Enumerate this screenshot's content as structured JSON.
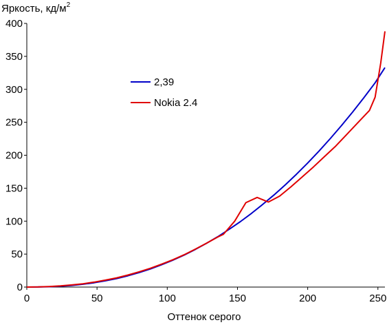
{
  "chart_data": {
    "type": "line",
    "ylabel_main": "Яркость, кд/м",
    "ylabel_sup": "2",
    "xlabel": "Оттенок серого",
    "xlim": [
      0,
      255
    ],
    "ylim": [
      0,
      400
    ],
    "xticks": [
      0,
      50,
      100,
      150,
      200,
      250
    ],
    "yticks": [
      0,
      50,
      100,
      150,
      200,
      250,
      300,
      350,
      400
    ],
    "grid": false,
    "legend_position": "upper-left-center",
    "series": [
      {
        "name": "2,39",
        "color": "#0000c8",
        "x": [
          0,
          8,
          16,
          24,
          32,
          40,
          48,
          56,
          64,
          72,
          80,
          88,
          96,
          104,
          112,
          120,
          128,
          136,
          144,
          152,
          160,
          168,
          176,
          184,
          192,
          200,
          208,
          216,
          224,
          232,
          240,
          248,
          255
        ],
        "y": [
          0,
          0.09,
          0.48,
          1.27,
          2.52,
          4.28,
          6.58,
          9.46,
          13.0,
          17.1,
          22.0,
          27.5,
          33.8,
          40.8,
          48.5,
          57.1,
          66.4,
          76.5,
          87.5,
          99.2,
          111.9,
          125.4,
          139.7,
          155.0,
          171.2,
          188.2,
          206.2,
          225.1,
          244.9,
          265.6,
          287.3,
          309.9,
          333
        ]
      },
      {
        "name": "Nokia 2.4",
        "color": "#e00000",
        "x": [
          0,
          8,
          16,
          24,
          32,
          40,
          48,
          56,
          64,
          72,
          80,
          88,
          96,
          104,
          112,
          120,
          128,
          136,
          140,
          148,
          156,
          164,
          172,
          180,
          188,
          196,
          204,
          212,
          220,
          228,
          236,
          244,
          248,
          252,
          255
        ],
        "y": [
          0,
          0.2,
          0.8,
          1.8,
          3.2,
          5.0,
          7.5,
          10.5,
          14.0,
          18.3,
          23.2,
          28.5,
          34.8,
          41.5,
          49.0,
          57.5,
          66.5,
          76.0,
          80.0,
          100.0,
          128.0,
          136.0,
          129.0,
          138.0,
          152.0,
          167.0,
          182.0,
          198.0,
          214.0,
          232.0,
          250.0,
          268.0,
          288.0,
          340.0,
          388.0
        ]
      }
    ]
  }
}
